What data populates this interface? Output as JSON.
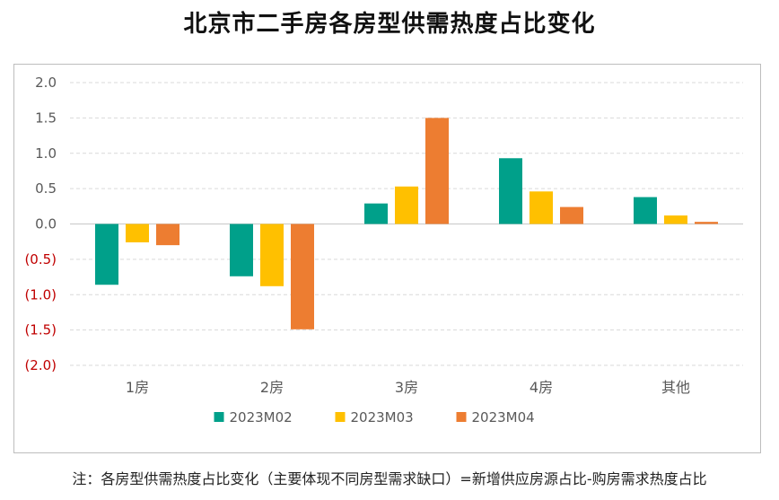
{
  "title": "北京市二手房各房型供需热度占比变化",
  "note": "注：各房型供需热度占比变化（主要体现不同房型需求缺口）=新增供应房源占比-购房需求热度占比",
  "chart_data": {
    "type": "bar",
    "categories": [
      "1房",
      "2房",
      "3房",
      "4房",
      "其他"
    ],
    "series": [
      {
        "name": "2023M02",
        "color": "#00A08A",
        "values": [
          -0.86,
          -0.74,
          0.29,
          0.93,
          0.38
        ]
      },
      {
        "name": "2023M03",
        "color": "#FFC000",
        "values": [
          -0.26,
          -0.88,
          0.53,
          0.46,
          0.12
        ]
      },
      {
        "name": "2023M04",
        "color": "#ED7D31",
        "values": [
          -0.3,
          -1.49,
          1.5,
          0.24,
          0.03
        ]
      }
    ],
    "ylim": [
      -2.0,
      2.0
    ],
    "yticks": [
      "2.0",
      "1.5",
      "1.0",
      "0.5",
      "0.0",
      "(0.5)",
      "(1.0)",
      "(1.5)",
      "(2.0)"
    ],
    "negative_tick_color": "#C00000",
    "grid": "dashed horizontal",
    "legend_position": "bottom"
  }
}
